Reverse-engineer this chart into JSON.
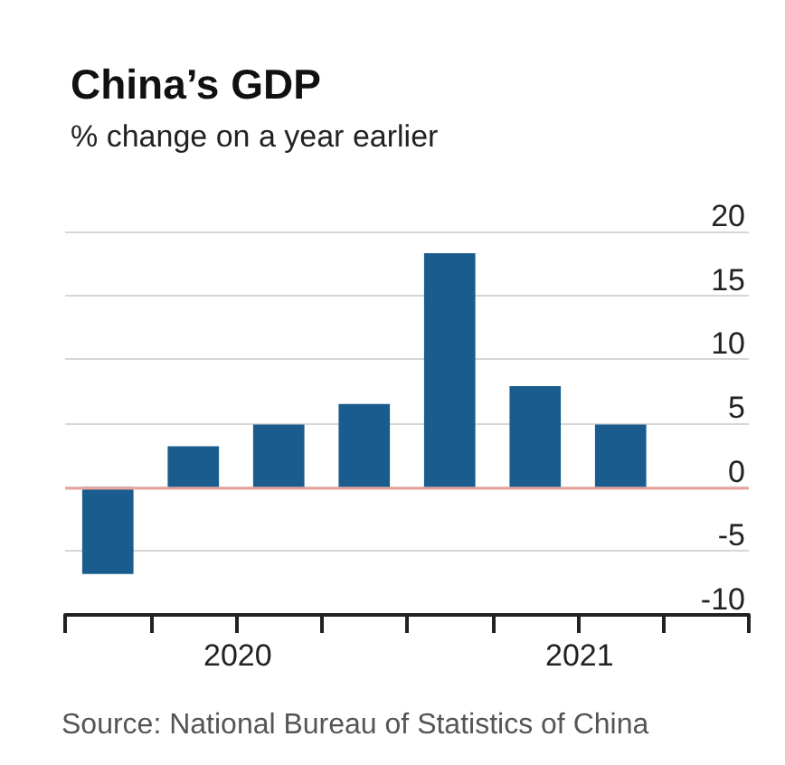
{
  "chart_data": {
    "type": "bar",
    "title": "China’s GDP",
    "subtitle": "% change on a year earlier",
    "categories": [
      null,
      null,
      null,
      null,
      null,
      null,
      null,
      null
    ],
    "values": [
      -6.8,
      3.2,
      4.9,
      6.5,
      18.3,
      7.9,
      4.9,
      null
    ],
    "color": "#1a5c8e",
    "ylim": [
      -10,
      20
    ],
    "yticks": [
      -10,
      -5,
      0,
      5,
      10,
      15,
      20
    ],
    "grid": "y",
    "ref_lines": [
      {
        "axis": "y",
        "value": 0,
        "color": "#e8a59c"
      }
    ],
    "annotations": [
      "2020",
      "2021",
      "Source: National Bureau of Statistics of China"
    ]
  }
}
